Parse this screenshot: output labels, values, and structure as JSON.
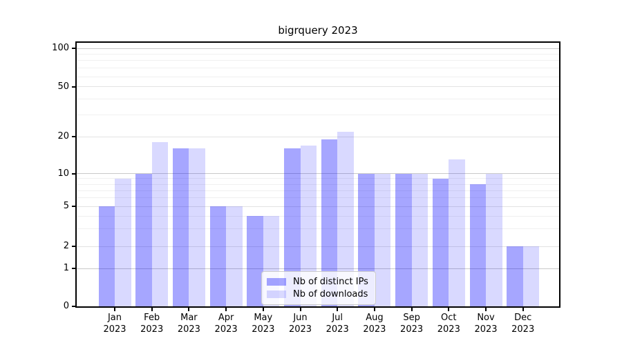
{
  "chart_data": {
    "type": "bar",
    "title": "bigrquery 2023",
    "categories": [
      "Jan 2023",
      "Feb 2023",
      "Mar 2023",
      "Apr 2023",
      "May 2023",
      "Jun 2023",
      "Jul 2023",
      "Aug 2023",
      "Sep 2023",
      "Oct 2023",
      "Nov 2023",
      "Dec 2023"
    ],
    "series": [
      {
        "name": "Nb of distinct IPs",
        "color": "#a5a5ff",
        "values": [
          5,
          10,
          16,
          5,
          4,
          16,
          19,
          10,
          10,
          9,
          8,
          2
        ]
      },
      {
        "name": "Nb of downloads",
        "color": "#d9d9ff",
        "values": [
          9,
          18,
          16,
          5,
          4,
          17,
          22,
          10,
          10,
          13,
          10,
          2
        ]
      }
    ],
    "y_ticks": [
      0,
      1,
      2,
      5,
      10,
      20,
      50,
      100
    ],
    "ylim": [
      0,
      115
    ],
    "yscale": "symlog",
    "xlabel": "",
    "ylabel": "",
    "grid": "horizontal major and log-minor gridlines",
    "legend_position": "lower center"
  }
}
